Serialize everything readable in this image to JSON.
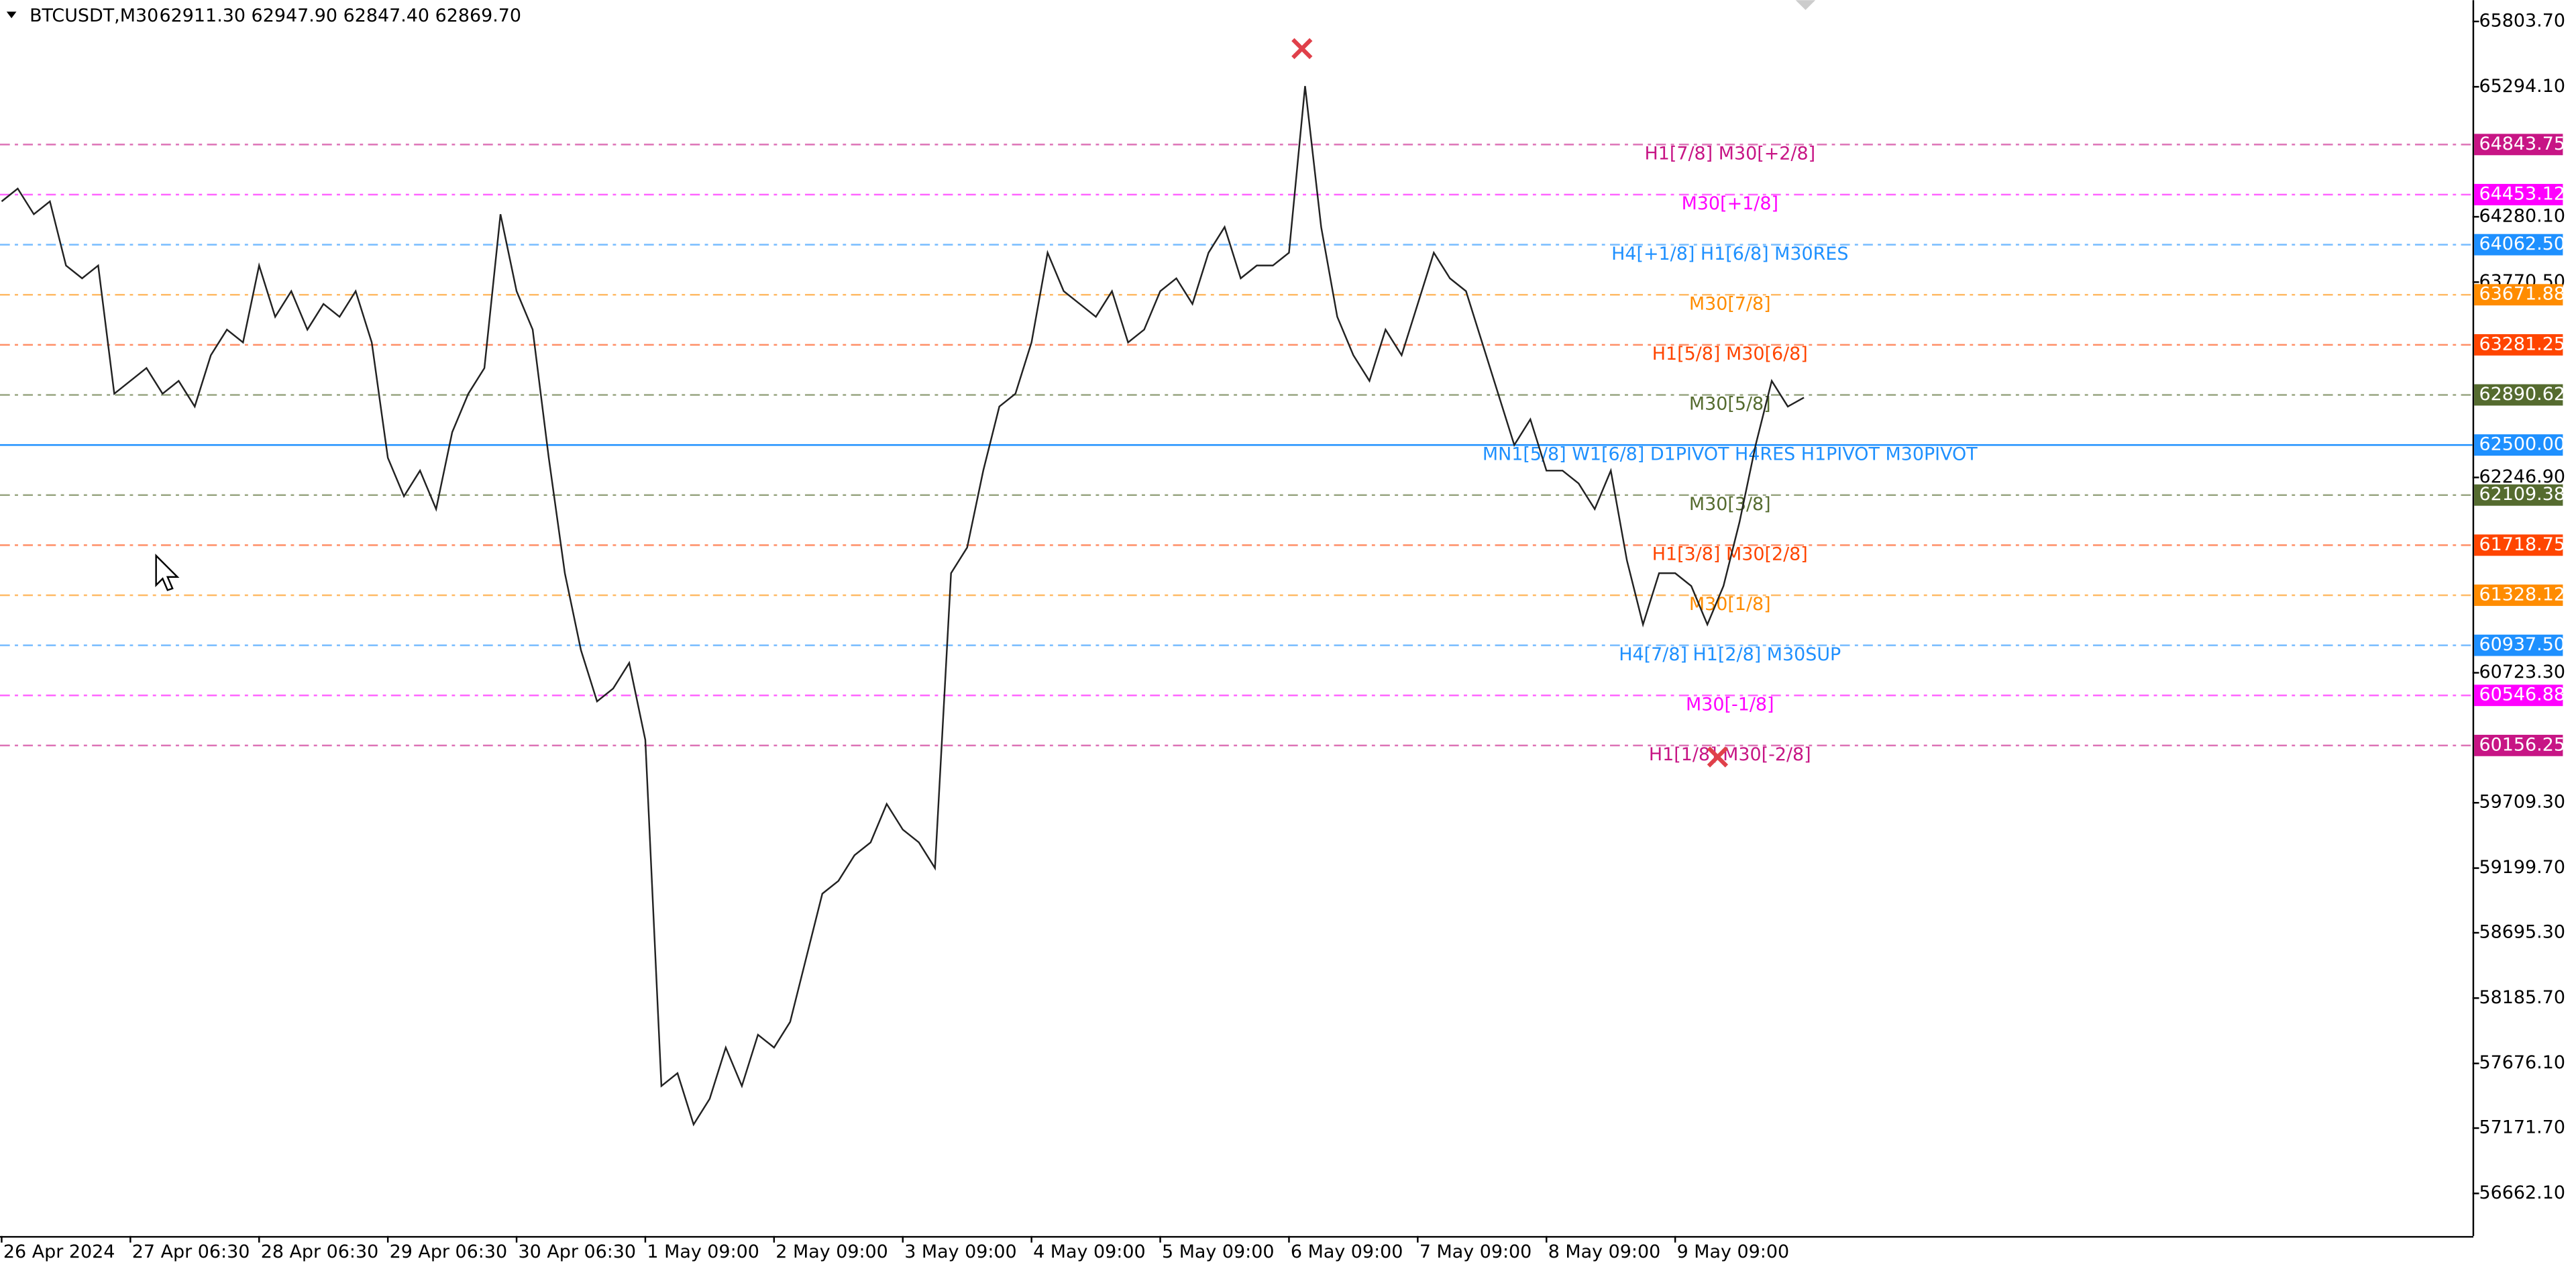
{
  "chart_data": {
    "type": "line",
    "title": "BTCUSDT,M30",
    "subtitle": "62911.30 62947.90 62847.40 62869.70",
    "categories": [
      "26 Apr 2024",
      null,
      null,
      null,
      null,
      null,
      null,
      null,
      "27 Apr 06:30",
      null,
      null,
      null,
      null,
      null,
      null,
      null,
      "28 Apr 06:30",
      null,
      null,
      null,
      null,
      null,
      null,
      null,
      "29 Apr 06:30",
      null,
      null,
      null,
      null,
      null,
      null,
      null,
      "30 Apr 06:30",
      null,
      null,
      null,
      null,
      null,
      null,
      null,
      "1 May 09:00",
      null,
      null,
      null,
      null,
      null,
      null,
      null,
      "2 May 09:00",
      null,
      null,
      null,
      null,
      null,
      null,
      null,
      "3 May 09:00",
      null,
      null,
      null,
      null,
      null,
      null,
      null,
      "4 May 09:00",
      null,
      null,
      null,
      null,
      null,
      null,
      null,
      "5 May 09:00",
      null,
      null,
      null,
      null,
      null,
      null,
      null,
      "6 May 09:00",
      null,
      null,
      null,
      null,
      null,
      null,
      null,
      "7 May 09:00",
      null,
      null,
      null,
      null,
      null,
      null,
      null,
      "8 May 09:00",
      null,
      null,
      null,
      null,
      null,
      null,
      null,
      "9 May 09:00",
      null,
      null,
      null,
      null,
      null,
      null,
      null,
      null
    ],
    "series": [
      {
        "name": "BTCUSDT",
        "color": "#222222",
        "values": [
          64400,
          64500,
          64300,
          64400,
          63900,
          63800,
          63900,
          62900,
          63000,
          63100,
          62900,
          63000,
          62800,
          63200,
          63400,
          63300,
          63900,
          63500,
          63700,
          63400,
          63600,
          63500,
          63700,
          63300,
          62400,
          62100,
          62300,
          62000,
          62600,
          62900,
          63100,
          64300,
          63700,
          63400,
          62400,
          61500,
          60900,
          60500,
          60600,
          60800,
          60200,
          57500,
          57600,
          57200,
          57400,
          57800,
          57500,
          57900,
          57800,
          58000,
          58500,
          59000,
          59100,
          59300,
          59400,
          59700,
          59500,
          59400,
          59200,
          61500,
          61700,
          62300,
          62800,
          62900,
          63300,
          64000,
          63700,
          63600,
          63500,
          63700,
          63300,
          63400,
          63700,
          63800,
          63600,
          64000,
          64200,
          63800,
          63900,
          63900,
          64000,
          65300,
          64200,
          63500,
          63200,
          63000,
          63400,
          63200,
          63600,
          64000,
          63800,
          63700,
          63300,
          62900,
          62500,
          62700,
          62300,
          62300,
          62200,
          62000,
          62300,
          61600,
          61100,
          61500,
          61500,
          61400,
          61100,
          61400,
          61900,
          62500,
          63000,
          62800,
          62870
        ]
      }
    ],
    "ylim": [
      56330,
      65970
    ],
    "yticks": [
      {
        "value": 65803.7,
        "label": "65803.70"
      },
      {
        "value": 65294.1,
        "label": "65294.10"
      },
      {
        "value": 64280.1,
        "label": "64280.10"
      },
      {
        "value": 63770.5,
        "label": "63770.50"
      },
      {
        "value": 62246.9,
        "label": "62246.90"
      },
      {
        "value": 60723.3,
        "label": "60723.30"
      },
      {
        "value": 59709.3,
        "label": "59709.30"
      },
      {
        "value": 59199.7,
        "label": "59199.70"
      },
      {
        "value": 58695.3,
        "label": "58695.30"
      },
      {
        "value": 58185.7,
        "label": "58185.70"
      },
      {
        "value": 57676.1,
        "label": "57676.10"
      },
      {
        "value": 57171.7,
        "label": "57171.70"
      },
      {
        "value": 56662.1,
        "label": "56662.10"
      }
    ],
    "levels": [
      {
        "value": 64843.75,
        "label": "64843.75",
        "name": "H1[7/8] M30[+2/8]",
        "color": "#c71585"
      },
      {
        "value": 64453.12,
        "label": "64453.12",
        "name": "M30[+1/8]",
        "color": "#ff00ff"
      },
      {
        "value": 64062.5,
        "label": "64062.50",
        "name": "H4[+1/8] H1[6/8] M30RES",
        "color": "#1e90ff"
      },
      {
        "value": 63671.88,
        "label": "63671.88",
        "name": "M30[7/8]",
        "color": "#ff8c00"
      },
      {
        "value": 63281.25,
        "label": "63281.25",
        "name": "H1[5/8] M30[6/8]",
        "color": "#ff4500"
      },
      {
        "value": 62890.62,
        "label": "62890.62",
        "name": "M30[5/8]",
        "color": "#556b2f"
      },
      {
        "value": 62500,
        "label": "62500.00",
        "name": "MN1[5/8] W1[6/8] D1PIVOT H4RES H1PIVOT M30PIVOT",
        "color": "#1e90ff",
        "solid": true
      },
      {
        "value": 62109.38,
        "label": "62109.38",
        "name": "M30[3/8]",
        "color": "#556b2f"
      },
      {
        "value": 61718.75,
        "label": "61718.75",
        "name": "H1[3/8] M30[2/8]",
        "color": "#ff4500"
      },
      {
        "value": 61328.12,
        "label": "61328.12",
        "name": "M30[1/8]",
        "color": "#ff8c00"
      },
      {
        "value": 60937.5,
        "label": "60937.50",
        "name": "H4[7/8] H1[2/8] M30SUP",
        "color": "#1e90ff"
      },
      {
        "value": 60546.88,
        "label": "60546.88",
        "name": "M30[-1/8]",
        "color": "#ff00ff"
      },
      {
        "value": 60156.25,
        "label": "60156.25",
        "name": "H1[1/8] M30[-2/8]",
        "color": "#c71585"
      }
    ]
  }
}
